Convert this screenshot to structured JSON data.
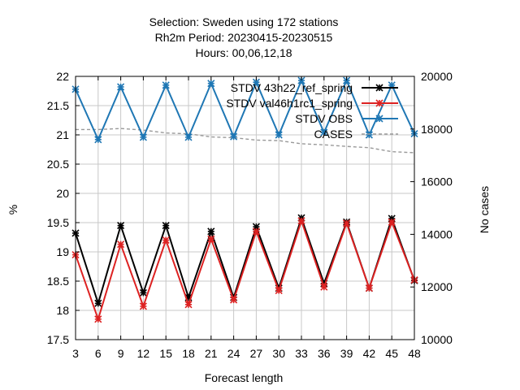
{
  "chart_data": {
    "type": "line",
    "title_lines": [
      "Selection: Sweden using    172 stations",
      "Rh2m   Period: 20230415-20230515",
      "Hours:  00,06,12,18"
    ],
    "xlabel": "Forecast length",
    "ylabel": "%",
    "y2label": "No cases",
    "x": [
      3,
      6,
      9,
      12,
      15,
      18,
      21,
      24,
      27,
      30,
      33,
      36,
      39,
      42,
      45,
      48
    ],
    "xlim": [
      3,
      48
    ],
    "ylim": [
      17.5,
      22
    ],
    "y2lim": [
      10000,
      20000
    ],
    "yticks": [
      17.5,
      18,
      18.5,
      19,
      19.5,
      20,
      20.5,
      21,
      21.5,
      22
    ],
    "yticklabels": [
      "17.5",
      "18",
      "18.5",
      "19",
      "19.5",
      "20",
      "20.5",
      "21",
      "21.5",
      "22"
    ],
    "y2ticks": [
      10000,
      12000,
      14000,
      16000,
      18000,
      20000
    ],
    "y2ticklabels": [
      "10000",
      "12000",
      "14000",
      "16000",
      "18000",
      "20000"
    ],
    "legend_position": "top-right",
    "grid": true,
    "series": [
      {
        "name": "STDV 43h22_ref_spring",
        "color": "#000000",
        "axis": "left",
        "marker": "star",
        "values": [
          19.32,
          18.12,
          19.45,
          18.3,
          19.45,
          18.22,
          19.35,
          18.22,
          19.43,
          18.38,
          19.58,
          18.46,
          19.51,
          18.38,
          19.57,
          18.51
        ]
      },
      {
        "name": "STDV val46h1rc1_spring",
        "color": "#dd2222",
        "axis": "left",
        "marker": "star",
        "values": [
          18.95,
          17.85,
          19.13,
          18.07,
          19.2,
          18.1,
          19.22,
          18.18,
          19.35,
          18.34,
          19.53,
          18.4,
          19.49,
          18.38,
          19.51,
          18.52
        ]
      },
      {
        "name": "STDV OBS",
        "color": "#1f77b4",
        "axis": "left",
        "marker": "star",
        "values": [
          21.78,
          20.92,
          21.82,
          20.96,
          21.85,
          20.96,
          21.88,
          20.97,
          21.9,
          21.0,
          21.93,
          21.04,
          21.93,
          21.0,
          21.85,
          21.02
        ]
      },
      {
        "name": "CASES",
        "color": "#999999",
        "axis": "right",
        "dashed": true,
        "values": [
          17980,
          17980,
          18020,
          17960,
          17850,
          17820,
          17700,
          17670,
          17580,
          17560,
          17440,
          17400,
          17340,
          17290,
          17140,
          17100
        ]
      }
    ]
  }
}
